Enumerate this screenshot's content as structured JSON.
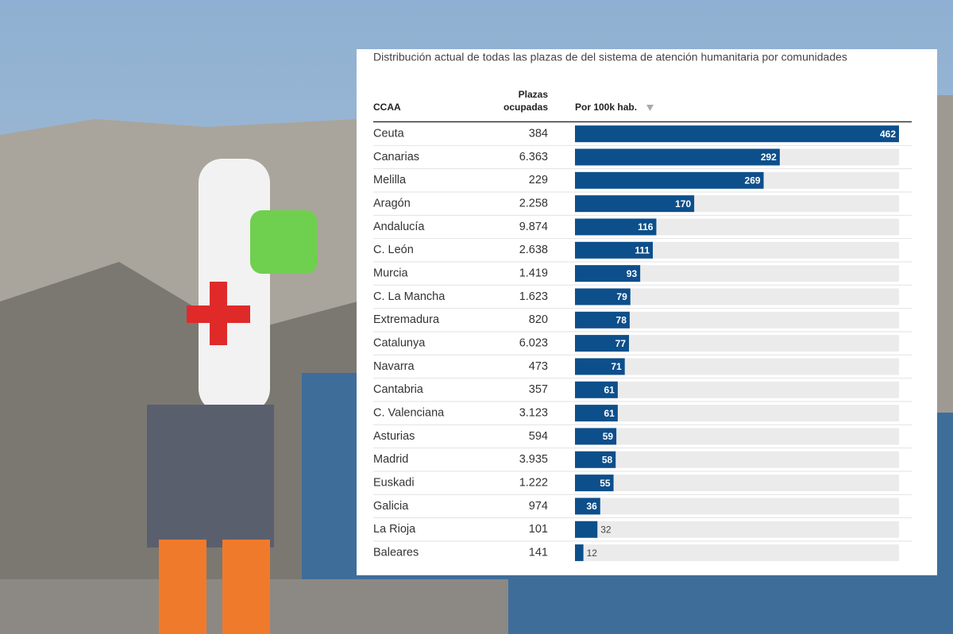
{
  "chart_data": {
    "type": "bar",
    "title": "Distribución actual de todas las plazas de del sistema de atención humanitaria por comunidades",
    "columns": [
      "CCAA",
      "Plazas ocupadas",
      "Por 100k hab."
    ],
    "categories": [
      "Ceuta",
      "Canarias",
      "Melilla",
      "Aragón",
      "Andalucía",
      "C. León",
      "Murcia",
      "C. La Mancha",
      "Extremadura",
      "Catalunya",
      "Navarra",
      "Cantabria",
      "C. Valenciana",
      "Asturias",
      "Madrid",
      "Euskadi",
      "Galicia",
      "La Rioja",
      "Baleares"
    ],
    "plazas_ocupadas": [
      "384",
      "6.363",
      "229",
      "2.258",
      "9.874",
      "2.638",
      "1.419",
      "1.623",
      "820",
      "6.023",
      "473",
      "357",
      "3.123",
      "594",
      "3.935",
      "1.222",
      "974",
      "101",
      "141"
    ],
    "values": [
      462,
      292,
      269,
      170,
      116,
      111,
      93,
      79,
      78,
      77,
      71,
      61,
      61,
      59,
      58,
      55,
      36,
      32,
      12
    ],
    "color": "#0d4f8b",
    "xlim": [
      0,
      462
    ]
  }
}
